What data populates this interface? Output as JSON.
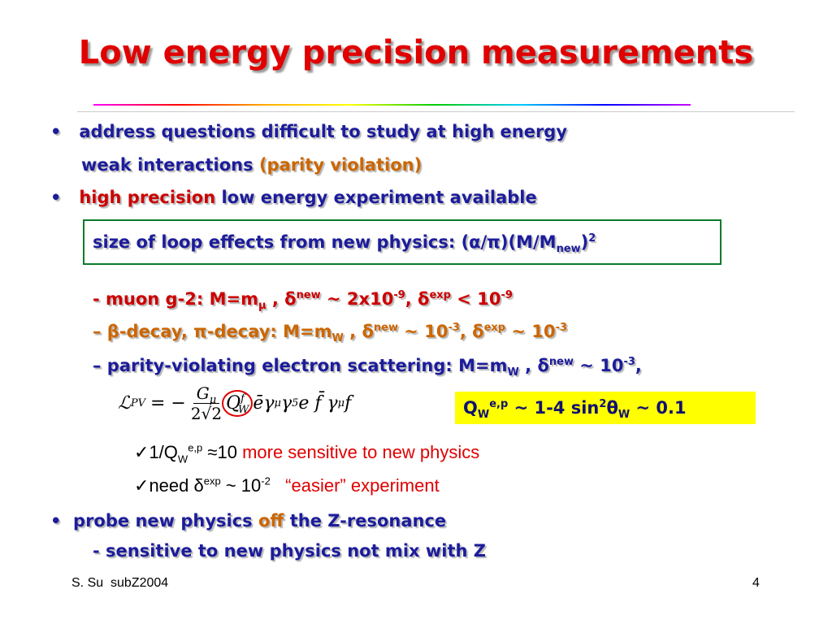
{
  "title": "Low energy precision measurements",
  "bullet1": [
    "address questions difficult to study at high energy",
    "weak interactions",
    "(parity violation)"
  ],
  "bullet2": [
    "high precision",
    "low energy experiment available"
  ],
  "box": [
    "size of loop effects from new physics: (α/π)(M/M",
    "new",
    ")",
    "2"
  ],
  "muon": [
    "- muon g-2: M=m",
    "μ",
    " , δ",
    "new",
    " ~ 2x10",
    "-9",
    ", δ",
    "exp",
    " < 10",
    "-9"
  ],
  "beta": [
    "– β-decay, π-decay: M=m",
    "W",
    " , δ",
    "new",
    " ~ 10",
    "-3",
    ", δ",
    "exp",
    " ~ 10",
    "-3"
  ],
  "parity": [
    "– parity-violating electron scattering: M=m",
    "W",
    " , δ",
    "new",
    " ~ 10",
    "-3",
    ","
  ],
  "formula": [
    "ℒ",
    "PV",
    "= −",
    "G",
    "μ",
    "2√2",
    "Q",
    "f",
    "W",
    "ēγ",
    "μ",
    "γ",
    "5",
    "e f̄ γ",
    "μ",
    "f"
  ],
  "weak_charge": [
    "Q",
    "W",
    "e,p",
    " ~ 1-4 sin",
    "2",
    "θ",
    "W",
    " ~ 0.1"
  ],
  "check1": [
    "✓",
    "1/Q",
    "W",
    "e,p",
    " ≈10",
    "more sensitive to new physics"
  ],
  "check2": [
    "✓",
    "need δ",
    "exp",
    " ~ 10",
    "-2",
    "“easier” experiment"
  ],
  "bullet3": [
    "probe new physics",
    "off",
    "the Z-resonance",
    "- sensitive to new physics not mix with Z"
  ],
  "footer": {
    "left": "S. Su  subZ2004",
    "page": "4"
  }
}
